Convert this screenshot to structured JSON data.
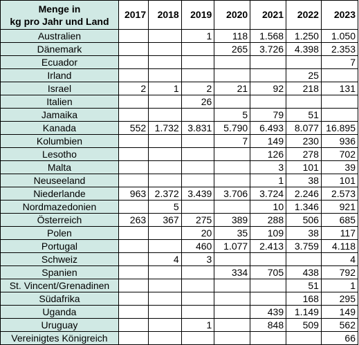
{
  "header": {
    "title_line1": "Menge in",
    "title_line2": "kg pro Jahr und Land",
    "years": [
      "2017",
      "2018",
      "2019",
      "2020",
      "2021",
      "2022",
      "2023"
    ]
  },
  "rows": [
    {
      "country": "Australien",
      "values": [
        "",
        "",
        "1",
        "118",
        "1.568",
        "1.250",
        "1.050"
      ]
    },
    {
      "country": "Dänemark",
      "values": [
        "",
        "",
        "",
        "265",
        "3.726",
        "4.398",
        "2.353"
      ]
    },
    {
      "country": "Ecuador",
      "values": [
        "",
        "",
        "",
        "",
        "",
        "",
        "7"
      ]
    },
    {
      "country": "Irland",
      "values": [
        "",
        "",
        "",
        "",
        "",
        "25",
        ""
      ]
    },
    {
      "country": "Israel",
      "values": [
        "2",
        "1",
        "2",
        "21",
        "92",
        "218",
        "131"
      ]
    },
    {
      "country": "Italien",
      "values": [
        "",
        "",
        "26",
        "",
        "",
        "",
        ""
      ]
    },
    {
      "country": "Jamaika",
      "values": [
        "",
        "",
        "",
        "5",
        "79",
        "51",
        ""
      ]
    },
    {
      "country": "Kanada",
      "values": [
        "552",
        "1.732",
        "3.831",
        "5.790",
        "6.493",
        "8.077",
        "16.895"
      ]
    },
    {
      "country": "Kolumbien",
      "values": [
        "",
        "",
        "",
        "7",
        "149",
        "230",
        "936"
      ]
    },
    {
      "country": "Lesotho",
      "values": [
        "",
        "",
        "",
        "",
        "126",
        "278",
        "702"
      ]
    },
    {
      "country": "Malta",
      "values": [
        "",
        "",
        "",
        "",
        "3",
        "101",
        "39"
      ]
    },
    {
      "country": "Neuseeland",
      "values": [
        "",
        "",
        "",
        "",
        "1",
        "38",
        "101"
      ]
    },
    {
      "country": "Niederlande",
      "values": [
        "963",
        "2.372",
        "3.439",
        "3.706",
        "3.724",
        "2.246",
        "2.573"
      ]
    },
    {
      "country": "Nordmazedonien",
      "values": [
        "",
        "5",
        "",
        "",
        "10",
        "1.346",
        "921"
      ]
    },
    {
      "country": "Österreich",
      "values": [
        "263",
        "367",
        "275",
        "389",
        "288",
        "506",
        "685"
      ]
    },
    {
      "country": "Polen",
      "values": [
        "",
        "",
        "20",
        "35",
        "109",
        "38",
        "117"
      ]
    },
    {
      "country": "Portugal",
      "values": [
        "",
        "",
        "460",
        "1.077",
        "2.413",
        "3.759",
        "4.118"
      ]
    },
    {
      "country": "Schweiz",
      "values": [
        "",
        "4",
        "3",
        "",
        "",
        "",
        "4"
      ]
    },
    {
      "country": "Spanien",
      "values": [
        "",
        "",
        "",
        "334",
        "705",
        "438",
        "792"
      ]
    },
    {
      "country": "St. Vincent/Grenadinen",
      "values": [
        "",
        "",
        "",
        "",
        "",
        "51",
        "1"
      ]
    },
    {
      "country": "Südafrika",
      "values": [
        "",
        "",
        "",
        "",
        "",
        "168",
        "295"
      ]
    },
    {
      "country": "Uganda",
      "values": [
        "",
        "",
        "",
        "",
        "439",
        "1.149",
        "149"
      ]
    },
    {
      "country": "Uruguay",
      "values": [
        "",
        "",
        "1",
        "",
        "848",
        "509",
        "562"
      ]
    },
    {
      "country": "Vereinigtes Königreich",
      "values": [
        "",
        "",
        "",
        "",
        "",
        "",
        "66"
      ]
    }
  ]
}
